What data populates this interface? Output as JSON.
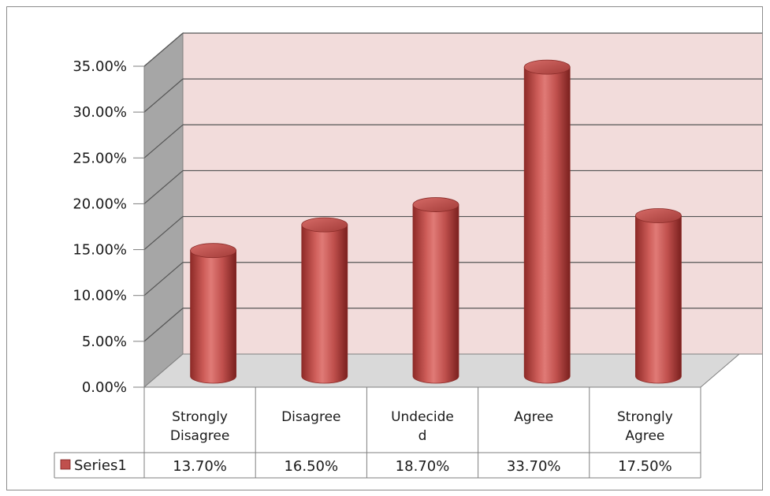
{
  "chart_data": {
    "type": "bar",
    "style": "3d-cylinder",
    "categories": [
      "Strongly Disagree",
      "Disagree",
      "Undecided",
      "Agree",
      "Strongly Agree"
    ],
    "category_label_lines": [
      [
        "Strongly",
        "Disagree"
      ],
      [
        "Disagree"
      ],
      [
        "Undecide",
        "d"
      ],
      [
        "Agree"
      ],
      [
        "Strongly",
        "Agree"
      ]
    ],
    "series": [
      {
        "name": "Series1",
        "values": [
          13.7,
          16.5,
          18.7,
          33.7,
          17.5
        ],
        "color": "#c0504d"
      }
    ],
    "value_labels": [
      "13.70%",
      "16.50%",
      "18.70%",
      "33.70%",
      "17.50%"
    ],
    "yticks": [
      "0.00%",
      "5.00%",
      "10.00%",
      "15.00%",
      "20.00%",
      "25.00%",
      "30.00%",
      "35.00%"
    ],
    "ylim": [
      0,
      35
    ],
    "grid": true,
    "data_table": true,
    "legend_placement": "data-table",
    "colors": {
      "back_wall": "#f2dcdb",
      "side_wall": "#a6a6a6",
      "floor": "#d9d9d9",
      "gridline": "#555555"
    }
  }
}
